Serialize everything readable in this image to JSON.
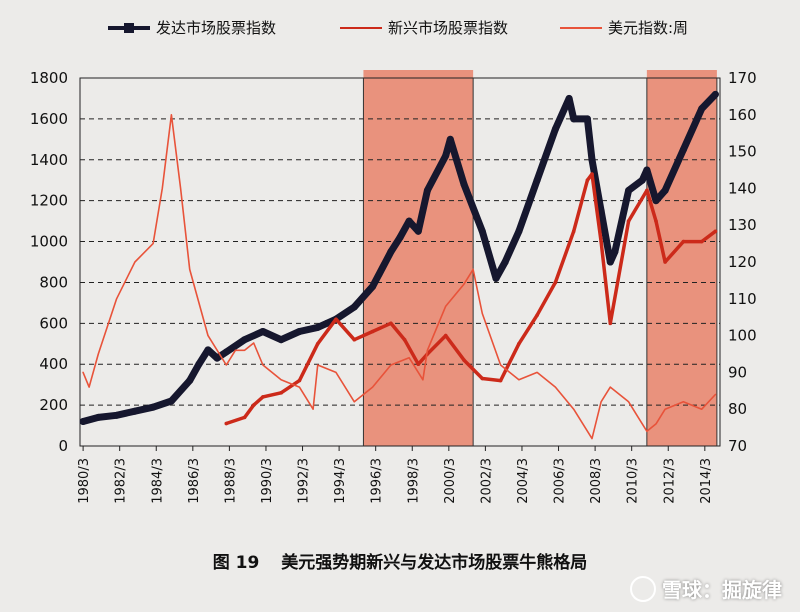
{
  "caption": {
    "figure_number": "图 19",
    "title": "美元强势期新兴与发达市场股票牛熊格局"
  },
  "watermark": {
    "text": "雪球：掘旋律",
    "icon": "snowball-logo-icon"
  },
  "chart_data": {
    "type": "line",
    "series": [
      {
        "name": "发达市场股票指数",
        "axis": "left",
        "color": "#16172e",
        "style": "thick",
        "x": [
          1980.17,
          1981.0,
          1982.0,
          1983.0,
          1984.0,
          1985.0,
          1986.0,
          1986.5,
          1987.0,
          1987.5,
          1988.0,
          1989.0,
          1990.0,
          1991.0,
          1992.0,
          1993.0,
          1993.5,
          1994.0,
          1995.0,
          1996.0,
          1997.0,
          1997.5,
          1998.0,
          1998.5,
          1999.0,
          2000.0,
          2000.25,
          2001.0,
          2002.0,
          2002.75,
          2003.25,
          2004.0,
          2005.0,
          2006.0,
          2006.75,
          2007.0,
          2007.75,
          2008.0,
          2008.5,
          2009.0,
          2009.25,
          2010.0,
          2010.75,
          2011.0,
          2011.5,
          2012.0,
          2013.0,
          2014.0,
          2014.75
        ],
        "values": [
          120,
          140,
          150,
          170,
          190,
          220,
          320,
          400,
          470,
          430,
          460,
          520,
          560,
          520,
          560,
          580,
          600,
          620,
          680,
          780,
          950,
          1020,
          1100,
          1050,
          1250,
          1420,
          1500,
          1280,
          1050,
          820,
          900,
          1050,
          1300,
          1550,
          1700,
          1600,
          1600,
          1400,
          1150,
          900,
          950,
          1250,
          1300,
          1350,
          1200,
          1250,
          1450,
          1650,
          1720
        ]
      },
      {
        "name": "新兴市场股票指数",
        "axis": "left",
        "color": "#cc2a1a",
        "style": "medium",
        "x": [
          1988.0,
          1989.0,
          1989.5,
          1990.0,
          1991.0,
          1992.0,
          1993.0,
          1994.0,
          1995.0,
          1996.0,
          1997.0,
          1997.75,
          1998.5,
          1999.0,
          2000.0,
          2001.0,
          2002.0,
          2003.0,
          2004.0,
          2005.0,
          2006.0,
          2007.0,
          2007.75,
          2008.0,
          2008.5,
          2009.0,
          2010.0,
          2011.0,
          2011.5,
          2012.0,
          2013.0,
          2014.0,
          2014.75
        ],
        "values": [
          110,
          140,
          200,
          240,
          260,
          320,
          500,
          620,
          520,
          560,
          600,
          520,
          400,
          450,
          540,
          420,
          330,
          320,
          500,
          640,
          800,
          1050,
          1300,
          1330,
          1000,
          600,
          1100,
          1250,
          1100,
          900,
          1000,
          1000,
          1050
        ]
      },
      {
        "name": "美元指数:周",
        "axis": "right",
        "color": "#e8533a",
        "style": "thin",
        "x": [
          1980.17,
          1980.5,
          1981.0,
          1982.0,
          1983.0,
          1984.0,
          1984.5,
          1985.0,
          1985.5,
          1986.0,
          1987.0,
          1988.0,
          1988.5,
          1989.0,
          1989.5,
          1990.0,
          1991.0,
          1992.0,
          1992.75,
          1993.0,
          1994.0,
          1995.0,
          1995.5,
          1996.0,
          1997.0,
          1998.0,
          1998.75,
          1999.0,
          2000.0,
          2001.0,
          2001.5,
          2002.0,
          2003.0,
          2004.0,
          2005.0,
          2006.0,
          2007.0,
          2007.5,
          2008.0,
          2008.5,
          2009.0,
          2010.0,
          2010.5,
          2011.0,
          2011.5,
          2012.0,
          2013.0,
          2014.0,
          2014.75
        ],
        "values": [
          90,
          86,
          95,
          110,
          120,
          125,
          140,
          160,
          140,
          118,
          100,
          92,
          96,
          96,
          98,
          92,
          88,
          86,
          80,
          92,
          90,
          82,
          84,
          86,
          92,
          94,
          88,
          96,
          108,
          114,
          118,
          106,
          92,
          88,
          90,
          86,
          80,
          76,
          72,
          82,
          86,
          82,
          78,
          74,
          76,
          80,
          82,
          80,
          84
        ]
      }
    ],
    "x_tick_labels": [
      "1980/3",
      "1982/3",
      "1984/3",
      "1986/3",
      "1988/3",
      "1990/3",
      "1992/3",
      "1994/3",
      "1996/3",
      "1998/3",
      "2000/3",
      "2002/3",
      "2004/3",
      "2006/3",
      "2008/3",
      "2010/3",
      "2012/3",
      "2014/3"
    ],
    "xlim": [
      1980.0,
      2015.0
    ],
    "y_left": {
      "ticks": [
        0,
        200,
        400,
        600,
        800,
        1000,
        1200,
        1400,
        1600,
        1800
      ],
      "ylim": [
        0,
        1800
      ]
    },
    "y_right": {
      "ticks": [
        70,
        80,
        90,
        100,
        110,
        120,
        130,
        140,
        150,
        160,
        170
      ],
      "ylim": [
        70,
        170
      ]
    },
    "shaded_periods": [
      [
        1995.5,
        2001.5
      ],
      [
        2011.0,
        2014.83
      ]
    ],
    "shade_color": "#e9826a",
    "grid": "horizontal dashed",
    "legend_position": "top"
  }
}
